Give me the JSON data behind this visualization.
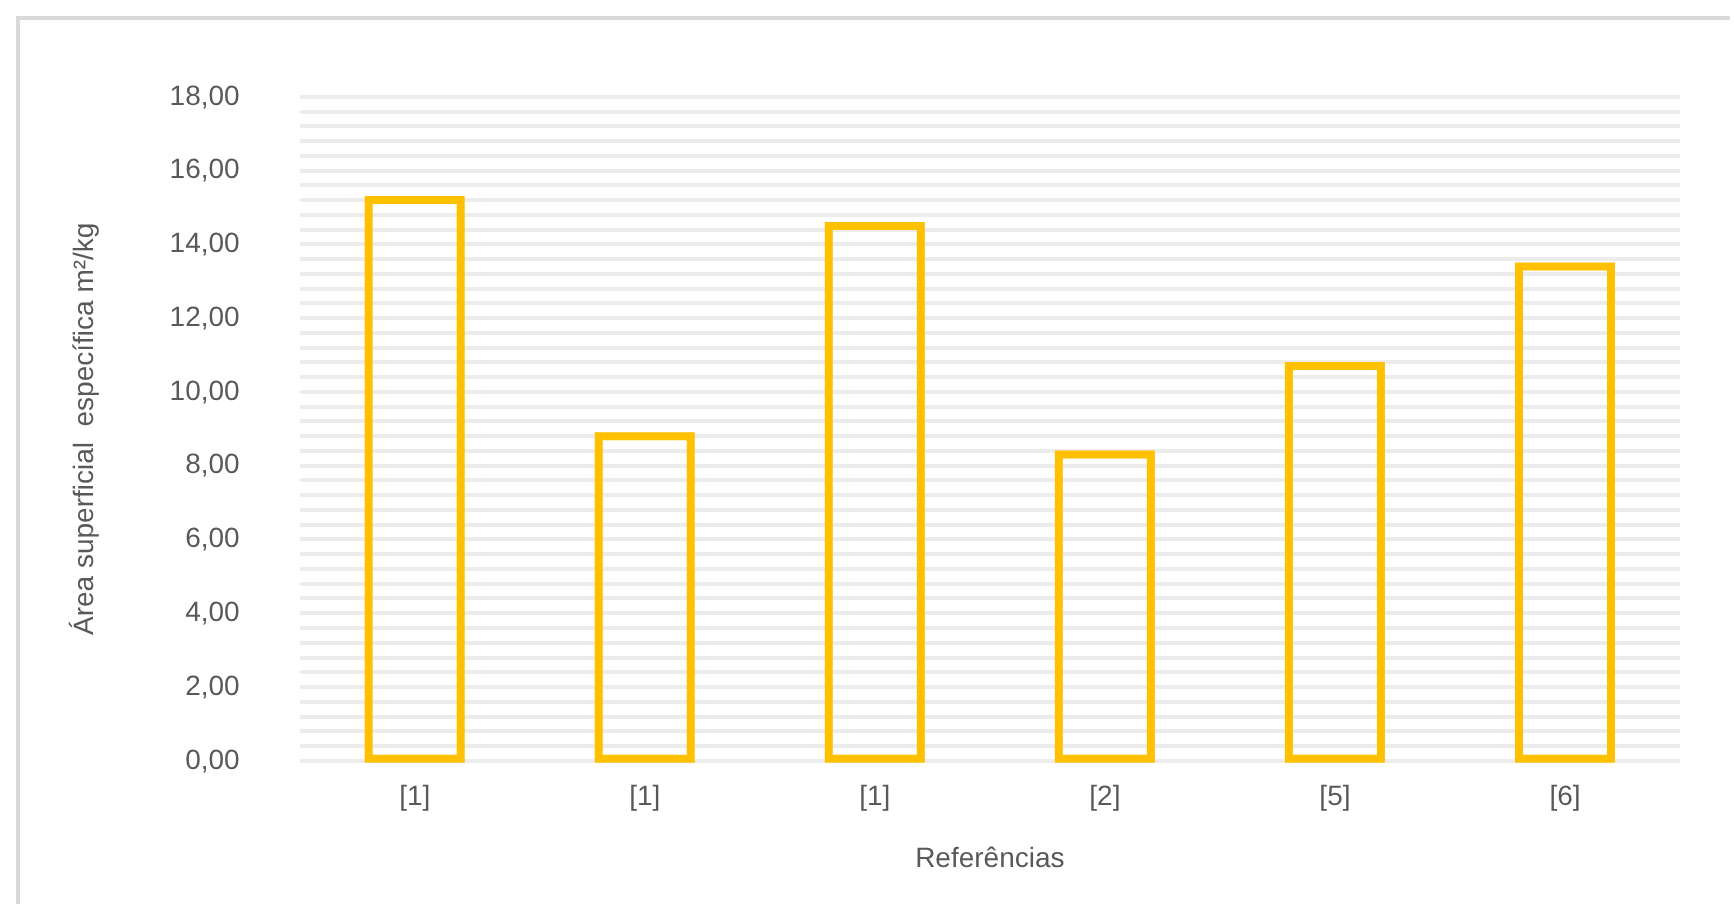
{
  "chart_data": {
    "type": "bar",
    "xlabel": "Referências",
    "ylabel": "Área superficial  específica m²/kg",
    "categories": [
      "[1]",
      "[1]",
      "[1]",
      "[2]",
      "[5]",
      "[6]"
    ],
    "values": [
      15.2,
      8.8,
      14.5,
      8.3,
      10.7,
      13.4
    ],
    "color": "#ffc000",
    "ylim": [
      0,
      18
    ],
    "yticks": [
      {
        "value": 0,
        "label": "0,00"
      },
      {
        "value": 0.4,
        "label": null
      },
      {
        "value": 0.8,
        "label": null
      },
      {
        "value": 1.2,
        "label": null
      },
      {
        "value": 1.6,
        "label": null
      },
      {
        "value": 2,
        "label": "2,00"
      },
      {
        "value": 2.4,
        "label": null
      },
      {
        "value": 2.8,
        "label": null
      },
      {
        "value": 3.2,
        "label": null
      },
      {
        "value": 3.6,
        "label": null
      },
      {
        "value": 4,
        "label": "4,00"
      },
      {
        "value": 4.4,
        "label": null
      },
      {
        "value": 4.8,
        "label": null
      },
      {
        "value": 5.2,
        "label": null
      },
      {
        "value": 5.6,
        "label": null
      },
      {
        "value": 6,
        "label": "6,00"
      },
      {
        "value": 6.4,
        "label": null
      },
      {
        "value": 6.8,
        "label": null
      },
      {
        "value": 7.2,
        "label": null
      },
      {
        "value": 7.6,
        "label": null
      },
      {
        "value": 8,
        "label": "8,00"
      },
      {
        "value": 8.4,
        "label": null
      },
      {
        "value": 8.8,
        "label": null
      },
      {
        "value": 9.2,
        "label": null
      },
      {
        "value": 9.6,
        "label": null
      },
      {
        "value": 10,
        "label": "10,00"
      },
      {
        "value": 10.4,
        "label": null
      },
      {
        "value": 10.8,
        "label": null
      },
      {
        "value": 11.2,
        "label": null
      },
      {
        "value": 11.6,
        "label": null
      },
      {
        "value": 12,
        "label": "12,00"
      },
      {
        "value": 12.4,
        "label": null
      },
      {
        "value": 12.8,
        "label": null
      },
      {
        "value": 13.2,
        "label": null
      },
      {
        "value": 13.6,
        "label": null
      },
      {
        "value": 14,
        "label": "14,00"
      },
      {
        "value": 14.4,
        "label": null
      },
      {
        "value": 14.8,
        "label": null
      },
      {
        "value": 15.2,
        "label": null
      },
      {
        "value": 15.6,
        "label": null
      },
      {
        "value": 16,
        "label": "16,00"
      },
      {
        "value": 16.4,
        "label": null
      },
      {
        "value": 16.8,
        "label": null
      },
      {
        "value": 17.2,
        "label": null
      },
      {
        "value": 17.6,
        "label": null
      },
      {
        "value": 18,
        "label": "18,00"
      }
    ],
    "grid": "y",
    "legend": false
  }
}
